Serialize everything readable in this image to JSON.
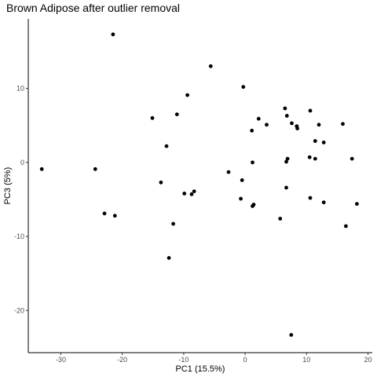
{
  "chart_data": {
    "type": "scatter",
    "title": "Brown Adipose after outlier removal",
    "xlabel": "PC1 (15.5%)",
    "ylabel": "PC3 (5%)",
    "xlim": [
      -35.3,
      20.7
    ],
    "ylim": [
      -25.7,
      19.4
    ],
    "x_ticks": [
      -30,
      -20,
      -10,
      0,
      10,
      20
    ],
    "x_tick_labels": [
      "-30",
      "-20",
      "-10",
      "0",
      "10",
      "20"
    ],
    "y_ticks": [
      -20,
      -10,
      0,
      10
    ],
    "y_tick_labels": [
      "-20",
      "-10",
      "0",
      "10"
    ],
    "grid": false,
    "legend": "none",
    "points": [
      {
        "x": -21.5,
        "y": 17.3
      },
      {
        "x": -5.6,
        "y": 13.0
      },
      {
        "x": -0.3,
        "y": 10.2
      },
      {
        "x": -9.4,
        "y": 9.1
      },
      {
        "x": -11.1,
        "y": 6.5
      },
      {
        "x": -15.1,
        "y": 6.0
      },
      {
        "x": -12.8,
        "y": 2.2
      },
      {
        "x": -33.1,
        "y": -0.9
      },
      {
        "x": -24.4,
        "y": -0.9
      },
      {
        "x": -13.7,
        "y": -2.7
      },
      {
        "x": -9.9,
        "y": -4.2
      },
      {
        "x": -8.3,
        "y": -3.9
      },
      {
        "x": -8.7,
        "y": -4.3
      },
      {
        "x": -22.9,
        "y": -6.9
      },
      {
        "x": -21.2,
        "y": -7.2
      },
      {
        "x": -11.7,
        "y": -8.3
      },
      {
        "x": -12.4,
        "y": -12.9
      },
      {
        "x": -2.7,
        "y": -1.3
      },
      {
        "x": -0.5,
        "y": -2.4
      },
      {
        "x": -0.7,
        "y": -4.9
      },
      {
        "x": 1.4,
        "y": -5.7
      },
      {
        "x": 1.2,
        "y": -5.9
      },
      {
        "x": 1.2,
        "y": 0.0
      },
      {
        "x": 1.1,
        "y": 4.3
      },
      {
        "x": 2.2,
        "y": 5.9
      },
      {
        "x": 3.5,
        "y": 5.1
      },
      {
        "x": 5.7,
        "y": -7.6
      },
      {
        "x": 6.5,
        "y": 7.3
      },
      {
        "x": 6.8,
        "y": 6.3
      },
      {
        "x": 6.7,
        "y": 0.1
      },
      {
        "x": 6.9,
        "y": 0.5
      },
      {
        "x": 6.7,
        "y": -3.4
      },
      {
        "x": 7.6,
        "y": 5.3
      },
      {
        "x": 8.4,
        "y": 4.9
      },
      {
        "x": 8.5,
        "y": 4.6
      },
      {
        "x": 10.6,
        "y": 7.0
      },
      {
        "x": 10.5,
        "y": 0.7
      },
      {
        "x": 11.4,
        "y": 2.9
      },
      {
        "x": 11.4,
        "y": 0.5
      },
      {
        "x": 12.0,
        "y": 5.1
      },
      {
        "x": 12.8,
        "y": 2.7
      },
      {
        "x": 10.6,
        "y": -4.8
      },
      {
        "x": 12.8,
        "y": -5.4
      },
      {
        "x": 15.9,
        "y": 5.2
      },
      {
        "x": 17.4,
        "y": 0.5
      },
      {
        "x": 18.2,
        "y": -5.6
      },
      {
        "x": 16.4,
        "y": -8.6
      },
      {
        "x": 7.5,
        "y": -23.3
      }
    ]
  }
}
